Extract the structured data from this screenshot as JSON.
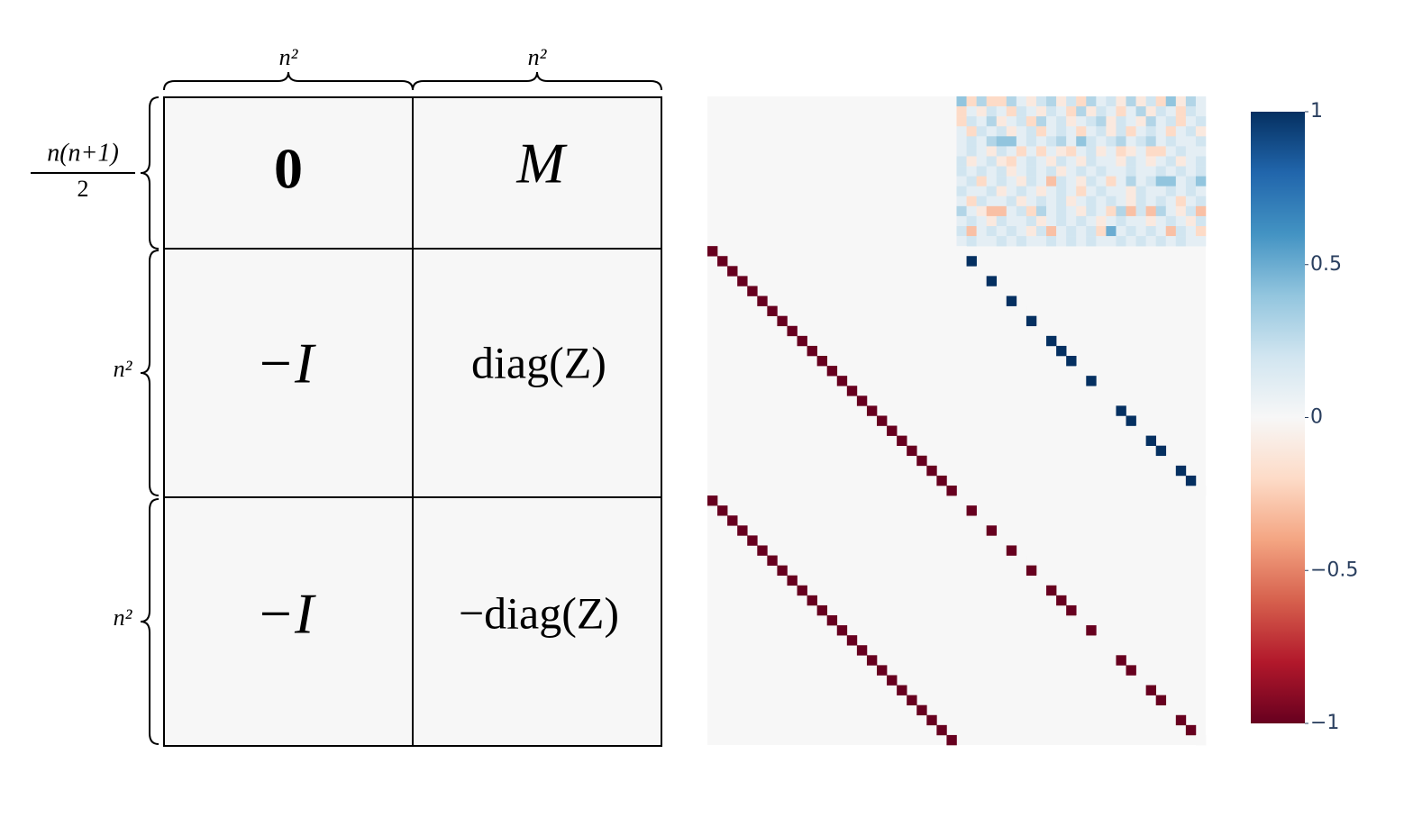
{
  "diagram": {
    "col_labels": [
      "n²",
      "n²"
    ],
    "row_labels": [
      {
        "numerator": "n(n+1)",
        "denominator": "2"
      },
      "n²",
      "n²"
    ],
    "cells": [
      [
        "0",
        "M"
      ],
      [
        "−I",
        "diag(Z)"
      ],
      [
        "−I",
        "−diag(Z)"
      ]
    ]
  },
  "heatmap": {
    "type": "heatmap",
    "colorscale": [
      "#67001f",
      "#b2182b",
      "#d6604d",
      "#f4a582",
      "#fddbc7",
      "#f7f7f7",
      "#d1e5f0",
      "#92c5de",
      "#4393c3",
      "#2166ac",
      "#053061"
    ],
    "zlim": [
      -1,
      1
    ],
    "colorbar_ticks": [
      1,
      0.5,
      0,
      {
        "value": -0.5,
        "label": "−0.5"
      },
      {
        "value": -1,
        "label": "−1"
      }
    ],
    "M": [
      [
        0.4,
        -0.2,
        0.3,
        -0.2,
        -0.2,
        0.3,
        0.1,
        -0.1,
        0.2,
        0.3,
        -0.1,
        0.2,
        -0.2,
        0.3,
        0.1,
        0.2,
        -0.1,
        0.3,
        -0.1,
        0.2,
        -0.2,
        0.4,
        -0.1,
        0.3,
        0.1
      ],
      [
        -0.2,
        0.1,
        -0.1,
        0.2,
        0.1,
        -0.2,
        0.2,
        0.1,
        -0.1,
        0.2,
        0.1,
        -0.2,
        0.3,
        -0.1,
        0.2,
        0.1,
        -0.2,
        0.1,
        0.3,
        -0.1,
        0.2,
        0.1,
        -0.2,
        0.2,
        0.1
      ],
      [
        -0.2,
        0.2,
        0.1,
        0.3,
        -0.1,
        0.1,
        0.2,
        -0.2,
        0.3,
        0.1,
        0.2,
        -0.1,
        0.1,
        0.2,
        0.3,
        -0.1,
        0.2,
        0.1,
        -0.1,
        0.3,
        0.1,
        0.2,
        -0.2,
        0.1,
        0.2
      ],
      [
        0.1,
        -0.2,
        0.2,
        0.1,
        0.2,
        -0.1,
        0.1,
        0.2,
        -0.2,
        0.1,
        0.2,
        0.1,
        -0.2,
        0.1,
        0.2,
        -0.1,
        0.2,
        -0.2,
        0.1,
        0.2,
        0.1,
        -0.2,
        0.1,
        0.2,
        -0.1
      ],
      [
        0.1,
        0.2,
        0.1,
        0.3,
        0.4,
        0.4,
        0.1,
        0.2,
        0.1,
        0.2,
        0.3,
        0.1,
        0.4,
        0.2,
        0.1,
        0.2,
        0.3,
        0.1,
        0.2,
        0.3,
        0.1,
        0.2,
        0.1,
        0.1,
        0.2
      ],
      [
        0.1,
        0.2,
        0.1,
        -0.1,
        0.2,
        0.1,
        -0.2,
        0.1,
        -0.2,
        0.1,
        -0.1,
        -0.2,
        0.1,
        0.2,
        -0.1,
        0.1,
        -0.2,
        -0.1,
        0.1,
        -0.2,
        -0.2,
        0.1,
        0.2,
        0.1,
        0.1
      ],
      [
        0.2,
        -0.1,
        0.1,
        0.2,
        -0.1,
        -0.2,
        0.1,
        0.2,
        0.1,
        -0.1,
        0.2,
        0.1,
        -0.1,
        0.2,
        0.1,
        0.1,
        -0.1,
        0.2,
        0.1,
        -0.1,
        0.1,
        0.2,
        -0.1,
        0.1,
        0.2
      ],
      [
        0.2,
        0.1,
        0.2,
        0.1,
        0.2,
        -0.1,
        0.1,
        0.2,
        0.1,
        0.2,
        -0.1,
        0.1,
        0.2,
        0.1,
        0.2,
        0.1,
        0.1,
        0.2,
        0.1,
        0.1,
        0.2,
        0.1,
        0.2,
        0.1,
        0.2
      ],
      [
        0.1,
        0.2,
        -0.2,
        0.1,
        0.2,
        0.1,
        -0.1,
        0.2,
        0.1,
        -0.3,
        0.2,
        0.1,
        -0.1,
        0.2,
        0.1,
        -0.2,
        0.1,
        0.3,
        0.1,
        0.2,
        0.4,
        0.4,
        0.1,
        0.2,
        0.4
      ],
      [
        0.2,
        0.1,
        0.1,
        0.2,
        -0.1,
        0.1,
        0.2,
        0.1,
        -0.1,
        0.1,
        0.2,
        0.1,
        -0.2,
        0.1,
        0.2,
        0.1,
        0.1,
        -0.1,
        0.2,
        0.1,
        0.1,
        0.2,
        0.1,
        0.2,
        0.1
      ],
      [
        0.1,
        -0.2,
        0.2,
        0.1,
        0.1,
        0.2,
        -0.1,
        0.1,
        0.2,
        0.1,
        0.2,
        -0.1,
        0.1,
        0.2,
        0.1,
        0.2,
        0.1,
        -0.1,
        0.2,
        0.1,
        0.2,
        0.1,
        -0.2,
        0.1,
        0.2
      ],
      [
        0.3,
        0.1,
        -0.1,
        -0.3,
        -0.3,
        0.1,
        0.2,
        -0.2,
        0.3,
        0.1,
        0.2,
        0.1,
        -0.1,
        0.2,
        0.1,
        -0.2,
        0.3,
        -0.3,
        0.2,
        -0.3,
        0.3,
        0.1,
        -0.1,
        0.2,
        -0.3
      ],
      [
        0.1,
        0.2,
        0.1,
        -0.1,
        0.2,
        0.1,
        0.1,
        0.2,
        -0.1,
        0.1,
        0.2,
        0.1,
        0.2,
        0.1,
        -0.1,
        0.1,
        0.2,
        0.1,
        0.1,
        -0.1,
        0.1,
        0.2,
        0.1,
        -0.1,
        0.2
      ],
      [
        0.2,
        -0.3,
        0.1,
        0.2,
        0.1,
        0.2,
        0.1,
        -0.1,
        0.2,
        -0.3,
        0.1,
        0.2,
        0.1,
        0.2,
        -0.2,
        0.5,
        0.1,
        0.2,
        0.1,
        0.2,
        0.1,
        -0.3,
        0.2,
        0.1,
        -0.2
      ],
      [
        0.1,
        0.2,
        0.1,
        0.1,
        0.2,
        0.1,
        0.2,
        0.1,
        0.1,
        0.2,
        0.1,
        0.2,
        0.1,
        0.2,
        0.1,
        0.1,
        0.2,
        0.1,
        0.2,
        0.1,
        0.2,
        0.1,
        0.2,
        0.1,
        0.1
      ]
    ],
    "middle_left_diag": [
      -1,
      -1,
      -1,
      -1,
      -1,
      -1,
      -1,
      -1,
      -1,
      -1,
      -1,
      -1,
      -1,
      -1,
      -1,
      -1,
      -1,
      -1,
      -1,
      -1,
      -1,
      -1,
      -1,
      -1,
      -1
    ],
    "middle_right_diag": [
      0,
      1,
      0,
      1,
      0,
      1,
      0,
      1,
      0,
      1,
      1,
      1,
      0,
      1,
      0,
      0,
      1,
      1,
      0,
      1,
      1,
      0,
      1,
      1,
      0
    ],
    "lower_left_diag": [
      -1,
      -1,
      -1,
      -1,
      -1,
      -1,
      -1,
      -1,
      -1,
      -1,
      -1,
      -1,
      -1,
      -1,
      -1,
      -1,
      -1,
      -1,
      -1,
      -1,
      -1,
      -1,
      -1,
      -1,
      -1
    ],
    "lower_right_diag": [
      0,
      -1,
      0,
      -1,
      0,
      -1,
      0,
      -1,
      0,
      -1,
      -1,
      -1,
      0,
      -1,
      0,
      0,
      -1,
      -1,
      0,
      -1,
      -1,
      0,
      -1,
      -1,
      0
    ]
  }
}
